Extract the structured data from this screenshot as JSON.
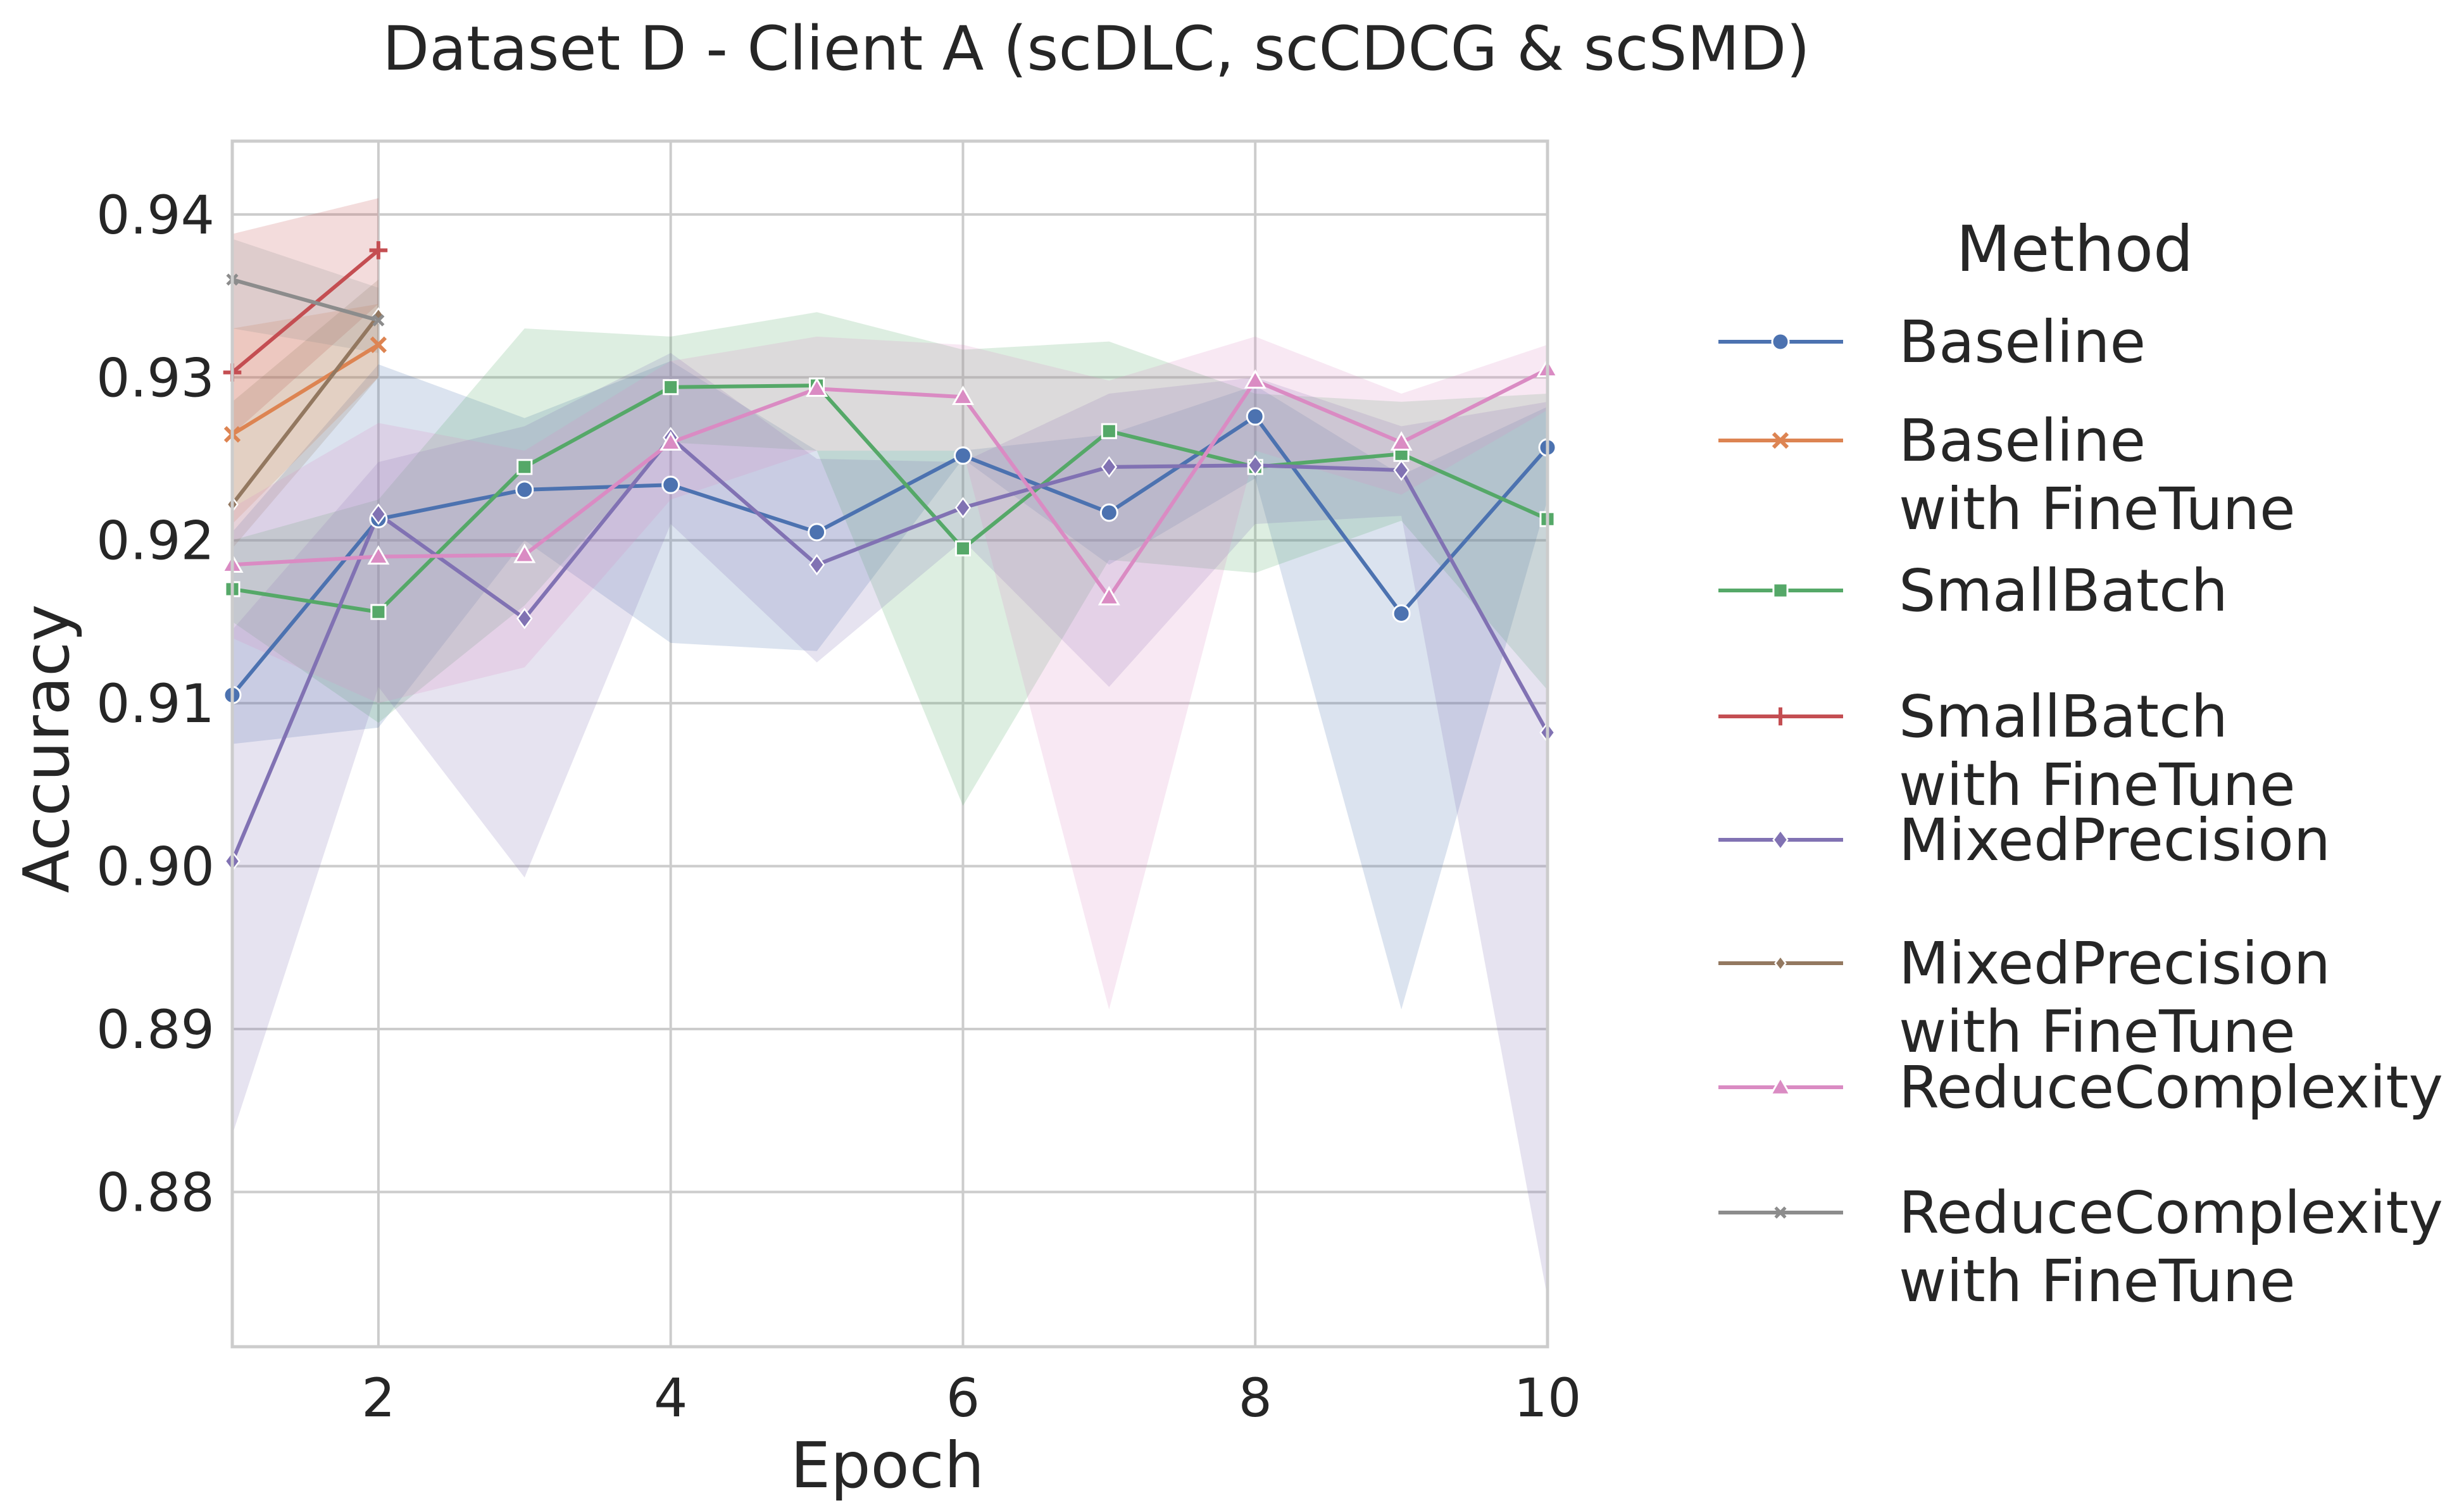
{
  "chart_data": {
    "type": "line",
    "title": "Dataset D - Client A (scDLC, scCDCG & scSMD)",
    "xlabel": "Epoch",
    "ylabel": "Accuracy",
    "xlim": [
      1,
      10
    ],
    "ylim": [
      0.8705,
      0.9445
    ],
    "xticks": [
      2,
      4,
      6,
      8,
      10
    ],
    "yticks": [
      0.88,
      0.89,
      0.9,
      0.91,
      0.92,
      0.93,
      0.94
    ],
    "ytick_labels": [
      "0.88",
      "0.89",
      "0.90",
      "0.91",
      "0.92",
      "0.93",
      "0.94"
    ],
    "grid": true,
    "legend_title": "Method",
    "legend_position": "right",
    "series": [
      {
        "name": "Baseline",
        "name_line2": "",
        "color": "#4c72b0",
        "marker": "circle",
        "x": [
          1,
          2,
          3,
          4,
          5,
          6,
          7,
          8,
          9,
          10
        ],
        "values": [
          0.9105,
          0.9213,
          0.9231,
          0.9234,
          0.9205,
          0.9252,
          0.9217,
          0.9276,
          0.9155,
          0.9257
        ],
        "ci_low": [
          0.9075,
          0.9085,
          0.92,
          0.9137,
          0.9132,
          0.925,
          0.9185,
          0.9238,
          0.8912,
          0.9225
        ],
        "ci_high": [
          0.9205,
          0.9308,
          0.9275,
          0.931,
          0.9255,
          0.9255,
          0.9265,
          0.9295,
          0.924,
          0.9282
        ]
      },
      {
        "name": "Baseline",
        "name_line2": "with FineTune",
        "color": "#dd8452",
        "marker": "x",
        "x": [
          1,
          2
        ],
        "values": [
          0.9265,
          0.932
        ],
        "ci_low": [
          0.921,
          0.93
        ],
        "ci_high": [
          0.933,
          0.9345
        ]
      },
      {
        "name": "SmallBatch",
        "name_line2": "",
        "color": "#55a868",
        "marker": "square",
        "x": [
          1,
          2,
          3,
          4,
          5,
          6,
          7,
          8,
          9,
          10
        ],
        "values": [
          0.917,
          0.9156,
          0.9245,
          0.9294,
          0.9295,
          0.9195,
          0.9267,
          0.9245,
          0.9253,
          0.9213
        ],
        "ci_low": [
          0.915,
          0.9088,
          0.916,
          0.926,
          0.9255,
          0.9037,
          0.9188,
          0.918,
          0.9212,
          0.9108
        ],
        "ci_high": [
          0.92,
          0.9225,
          0.933,
          0.9325,
          0.934,
          0.9317,
          0.9322,
          0.929,
          0.9285,
          0.929
        ]
      },
      {
        "name": "SmallBatch",
        "name_line2": "with FineTune",
        "color": "#c44e52",
        "marker": "plus",
        "x": [
          1,
          2
        ],
        "values": [
          0.9303,
          0.9378
        ],
        "ci_low": [
          0.9265,
          0.9345
        ],
        "ci_high": [
          0.9388,
          0.941
        ]
      },
      {
        "name": "MixedPrecision",
        "name_line2": "",
        "color": "#8172b3",
        "marker": "diamond",
        "x": [
          1,
          2,
          3,
          4,
          5,
          6,
          7,
          8,
          9,
          10
        ],
        "values": [
          0.9003,
          0.9216,
          0.9152,
          0.9263,
          0.9185,
          0.922,
          0.9245,
          0.9246,
          0.9243,
          0.9082
        ],
        "ci_low": [
          0.8835,
          0.911,
          0.8993,
          0.921,
          0.9125,
          0.92,
          0.911,
          0.921,
          0.9215,
          0.8735
        ],
        "ci_high": [
          0.9145,
          0.9248,
          0.927,
          0.9315,
          0.925,
          0.9248,
          0.929,
          0.93,
          0.927,
          0.9285
        ]
      },
      {
        "name": "MixedPrecision",
        "name_line2": "with FineTune",
        "color": "#937860",
        "marker": "diamond-small",
        "x": [
          1,
          2
        ],
        "values": [
          0.9222,
          0.9338
        ],
        "ci_low": [
          0.9195,
          0.93
        ],
        "ci_high": [
          0.9285,
          0.936
        ]
      },
      {
        "name": "ReduceComplexity",
        "name_line2": "",
        "color": "#da8bc3",
        "marker": "triangle",
        "x": [
          1,
          2,
          3,
          4,
          5,
          6,
          7,
          8,
          9,
          10
        ],
        "values": [
          0.9185,
          0.919,
          0.9191,
          0.926,
          0.9293,
          0.9288,
          0.9165,
          0.9298,
          0.926,
          0.9305
        ],
        "ci_low": [
          0.914,
          0.91,
          0.9122,
          0.9225,
          0.9255,
          0.9255,
          0.8912,
          0.9255,
          0.9228,
          0.928
        ],
        "ci_high": [
          0.922,
          0.9272,
          0.9255,
          0.931,
          0.9325,
          0.932,
          0.9298,
          0.9325,
          0.929,
          0.932
        ]
      },
      {
        "name": "ReduceComplexity",
        "name_line2": "with FineTune",
        "color": "#8c8c8c",
        "marker": "x-small",
        "x": [
          1,
          2
        ],
        "values": [
          0.936,
          0.9335
        ],
        "ci_low": [
          0.933,
          0.9315
        ],
        "ci_high": [
          0.9385,
          0.9355
        ]
      }
    ]
  }
}
